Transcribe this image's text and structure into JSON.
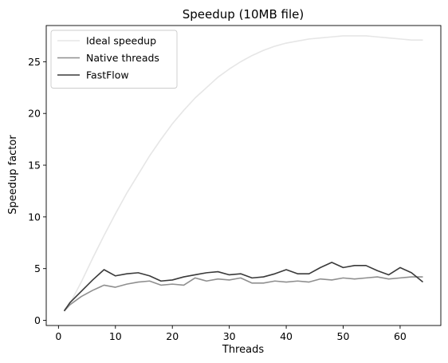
{
  "chart_data": {
    "type": "line",
    "title": "Speedup (10MB file)",
    "xlabel": "Threads",
    "ylabel": "Speedup factor",
    "xlim": [
      -2.15,
      67.15
    ],
    "ylim": [
      -0.5,
      28.5
    ],
    "xticks": [
      0,
      10,
      20,
      30,
      40,
      50,
      60
    ],
    "yticks": [
      0,
      5,
      10,
      15,
      20,
      25
    ],
    "grid": false,
    "legend_position": "top-left",
    "series": [
      {
        "name": "Ideal speedup",
        "color": "#e6e6e6",
        "x": [
          1,
          2,
          4,
          6,
          8,
          10,
          12,
          14,
          16,
          18,
          20,
          22,
          24,
          26,
          28,
          30,
          32,
          34,
          36,
          38,
          40,
          42,
          44,
          46,
          48,
          50,
          52,
          54,
          56,
          58,
          60,
          62,
          64
        ],
        "y": [
          1.0,
          1.6,
          3.7,
          6.0,
          8.2,
          10.3,
          12.3,
          14.1,
          15.9,
          17.5,
          19.0,
          20.3,
          21.5,
          22.5,
          23.5,
          24.3,
          25.0,
          25.6,
          26.1,
          26.5,
          26.8,
          27.0,
          27.2,
          27.3,
          27.4,
          27.5,
          27.5,
          27.5,
          27.4,
          27.3,
          27.2,
          27.1,
          27.1
        ]
      },
      {
        "name": "Native threads",
        "color": "#8f8f8f",
        "x": [
          1,
          2,
          4,
          6,
          8,
          10,
          12,
          14,
          16,
          18,
          20,
          22,
          24,
          26,
          28,
          30,
          32,
          34,
          36,
          38,
          40,
          42,
          44,
          46,
          48,
          50,
          52,
          54,
          56,
          58,
          60,
          62,
          64
        ],
        "y": [
          0.9,
          1.5,
          2.3,
          2.9,
          3.4,
          3.2,
          3.5,
          3.7,
          3.8,
          3.4,
          3.5,
          3.4,
          4.1,
          3.8,
          4.0,
          3.9,
          4.1,
          3.6,
          3.6,
          3.8,
          3.7,
          3.8,
          3.7,
          4.0,
          3.9,
          4.1,
          4.0,
          4.1,
          4.2,
          4.0,
          4.1,
          4.2,
          4.2
        ]
      },
      {
        "name": "FastFlow",
        "color": "#3a3a3a",
        "x": [
          1,
          2,
          4,
          6,
          8,
          10,
          12,
          14,
          16,
          18,
          20,
          22,
          24,
          26,
          28,
          30,
          32,
          34,
          36,
          38,
          40,
          42,
          44,
          46,
          48,
          50,
          52,
          54,
          56,
          58,
          60,
          62,
          64
        ],
        "y": [
          0.9,
          1.7,
          2.8,
          3.9,
          4.9,
          4.3,
          4.5,
          4.6,
          4.3,
          3.8,
          3.9,
          4.2,
          4.4,
          4.6,
          4.7,
          4.4,
          4.5,
          4.1,
          4.2,
          4.5,
          4.9,
          4.5,
          4.5,
          5.1,
          5.6,
          5.1,
          5.3,
          5.3,
          4.8,
          4.4,
          5.1,
          4.6,
          3.7
        ]
      }
    ]
  }
}
